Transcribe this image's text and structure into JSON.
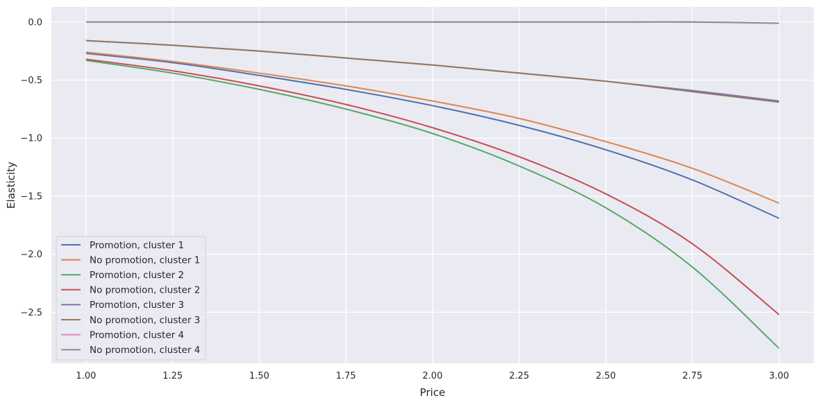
{
  "chart_data": {
    "type": "line",
    "title": "",
    "xlabel": "Price",
    "ylabel": "Elasticity",
    "xlim": [
      0.9,
      3.1
    ],
    "ylim": [
      -2.94,
      0.13
    ],
    "x_ticks": [
      1.0,
      1.25,
      1.5,
      1.75,
      2.0,
      2.25,
      2.5,
      2.75,
      3.0
    ],
    "x_tick_labels": [
      "1.00",
      "1.25",
      "1.50",
      "1.75",
      "2.00",
      "2.25",
      "2.50",
      "2.75",
      "3.00"
    ],
    "y_ticks": [
      0.0,
      -0.5,
      -1.0,
      -1.5,
      -2.0,
      -2.5
    ],
    "y_tick_labels": [
      "0.0",
      "−0.5",
      "−1.0",
      "−1.5",
      "−2.0",
      "−2.5"
    ],
    "grid": true,
    "legend_position": "lower-left",
    "x": [
      1.0,
      1.25,
      1.5,
      1.75,
      2.0,
      2.25,
      2.5,
      2.75,
      3.0
    ],
    "series": [
      {
        "name": "Promotion, cluster 1",
        "color": "#4c72b0",
        "values": [
          -0.27,
          -0.35,
          -0.46,
          -0.58,
          -0.72,
          -0.89,
          -1.1,
          -1.36,
          -1.69
        ]
      },
      {
        "name": "No promotion, cluster 1",
        "color": "#dd8452",
        "values": [
          -0.26,
          -0.34,
          -0.44,
          -0.55,
          -0.68,
          -0.83,
          -1.03,
          -1.26,
          -1.56
        ]
      },
      {
        "name": "Promotion, cluster 2",
        "color": "#55a868",
        "values": [
          -0.33,
          -0.44,
          -0.58,
          -0.75,
          -0.96,
          -1.24,
          -1.6,
          -2.11,
          -2.81
        ]
      },
      {
        "name": "No promotion, cluster 2",
        "color": "#c44e52",
        "values": [
          -0.32,
          -0.42,
          -0.55,
          -0.71,
          -0.91,
          -1.16,
          -1.48,
          -1.91,
          -2.52
        ]
      },
      {
        "name": "Promotion, cluster 3",
        "color": "#8172b3",
        "values": [
          -0.16,
          -0.2,
          -0.25,
          -0.31,
          -0.37,
          -0.44,
          -0.51,
          -0.59,
          -0.68
        ]
      },
      {
        "name": "No promotion, cluster 3",
        "color": "#937860",
        "values": [
          -0.16,
          -0.2,
          -0.25,
          -0.31,
          -0.37,
          -0.44,
          -0.51,
          -0.6,
          -0.69
        ]
      },
      {
        "name": "Promotion, cluster 4",
        "color": "#da8bc3",
        "values": [
          0.0,
          0.0,
          0.0,
          0.0,
          0.0,
          0.0,
          0.0,
          0.0,
          -0.01
        ]
      },
      {
        "name": "No promotion, cluster 4",
        "color": "#8c8c8c",
        "values": [
          0.0,
          0.0,
          0.0,
          0.0,
          0.0,
          0.0,
          0.0,
          0.0,
          -0.01
        ]
      }
    ]
  }
}
